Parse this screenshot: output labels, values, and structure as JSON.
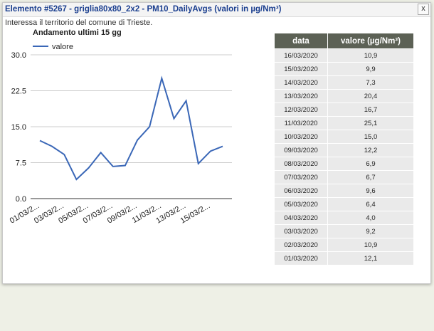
{
  "header": {
    "title": "Elemento #5267 - griglia80x80_2x2 - PM10_DailyAvgs (valori in µg/Nm³)",
    "close": "x",
    "subtitle": "Interessa il territorio del comune di Trieste."
  },
  "chart_data": {
    "type": "line",
    "title": "Andamento ultimi 15 gg",
    "categories": [
      "01/03/2...",
      null,
      "03/03/2...",
      null,
      "05/03/2...",
      null,
      "07/03/2...",
      null,
      "09/03/2...",
      null,
      "11/03/2...",
      null,
      "13/03/2...",
      null,
      "15/03/2...",
      null
    ],
    "series": [
      {
        "name": "valore",
        "color": "#3a67b7",
        "values": [
          12.1,
          10.9,
          9.2,
          4.0,
          6.4,
          9.6,
          6.7,
          6.9,
          12.2,
          15.0,
          25.1,
          16.7,
          20.4,
          7.3,
          9.9,
          10.9
        ]
      }
    ],
    "ylim": [
      0,
      30
    ],
    "yticks": [
      {
        "value": 0,
        "label": "0.0"
      },
      7.5,
      {
        "value": 15,
        "label": "15.0"
      },
      22.5,
      {
        "value": 30,
        "label": "30.0"
      }
    ],
    "grid": true,
    "legend": "top-left"
  },
  "table": {
    "header": [
      "data",
      "valore (µg/Nm³)"
    ],
    "rows": [
      [
        "16/03/2020",
        "10,9"
      ],
      [
        "15/03/2020",
        "9,9"
      ],
      [
        "14/03/2020",
        "7,3"
      ],
      [
        "13/03/2020",
        "20,4"
      ],
      [
        "12/03/2020",
        "16,7"
      ],
      [
        "11/03/2020",
        "25,1"
      ],
      [
        "10/03/2020",
        "15,0"
      ],
      [
        "09/03/2020",
        "12,2"
      ],
      [
        "08/03/2020",
        "6,9"
      ],
      [
        "07/03/2020",
        "6,7"
      ],
      [
        "06/03/2020",
        "9,6"
      ],
      [
        "05/03/2020",
        "6,4"
      ],
      [
        "04/03/2020",
        "4,0"
      ],
      [
        "03/03/2020",
        "9,2"
      ],
      [
        "02/03/2020",
        "10,9"
      ],
      [
        "01/03/2020",
        "12,1"
      ]
    ]
  }
}
